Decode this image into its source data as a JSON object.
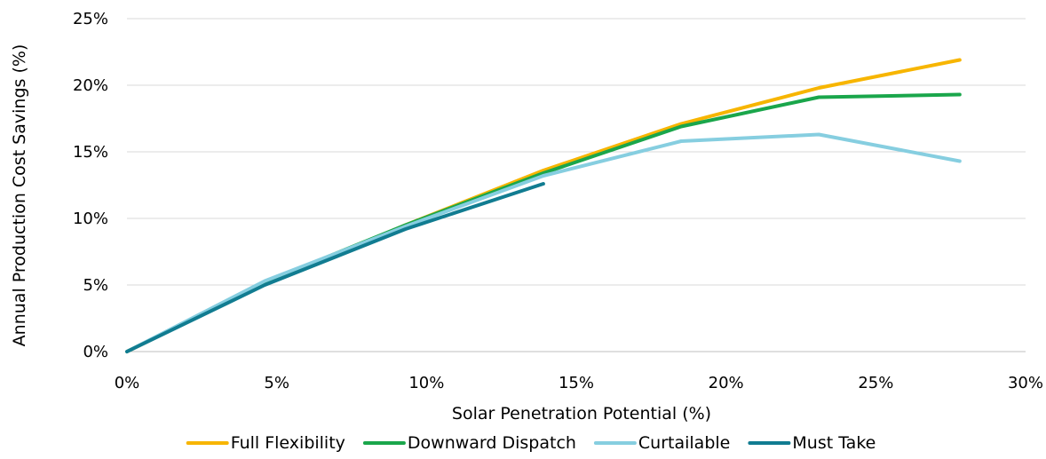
{
  "chart_data": {
    "type": "line",
    "xlabel": "Solar Penetration Potential (%)",
    "ylabel": "Annual Production Cost Savings (%)",
    "x_ticks": [
      "0%",
      "5%",
      "10%",
      "15%",
      "20%",
      "25%",
      "30%"
    ],
    "y_ticks": [
      "0%",
      "5%",
      "10%",
      "15%",
      "20%",
      "25%"
    ],
    "xlim": [
      0,
      30
    ],
    "ylim": [
      0,
      25
    ],
    "grid": "horizontal",
    "legend_position": "bottom",
    "series": [
      {
        "name": "Full Flexibility",
        "color": "#F7B500",
        "points": [
          [
            0,
            0
          ],
          [
            4.6,
            5.1
          ],
          [
            9.3,
            9.5
          ],
          [
            13.9,
            13.6
          ],
          [
            18.5,
            17.1
          ],
          [
            23.1,
            19.8
          ],
          [
            27.8,
            21.9
          ]
        ]
      },
      {
        "name": "Downward Dispatch",
        "color": "#1AA64B",
        "points": [
          [
            0,
            0
          ],
          [
            4.6,
            5.2
          ],
          [
            9.3,
            9.5
          ],
          [
            13.9,
            13.4
          ],
          [
            18.5,
            16.9
          ],
          [
            23.1,
            19.1
          ],
          [
            27.8,
            19.3
          ]
        ]
      },
      {
        "name": "Curtailable",
        "color": "#86CEE0",
        "points": [
          [
            0,
            0
          ],
          [
            4.6,
            5.3
          ],
          [
            9.3,
            9.4
          ],
          [
            13.9,
            13.2
          ],
          [
            18.5,
            15.8
          ],
          [
            23.1,
            16.3
          ],
          [
            27.8,
            14.3
          ]
        ]
      },
      {
        "name": "Must Take",
        "color": "#117C91",
        "points": [
          [
            0,
            0
          ],
          [
            4.6,
            5.0
          ],
          [
            9.3,
            9.2
          ],
          [
            13.9,
            12.6
          ]
        ]
      }
    ]
  }
}
